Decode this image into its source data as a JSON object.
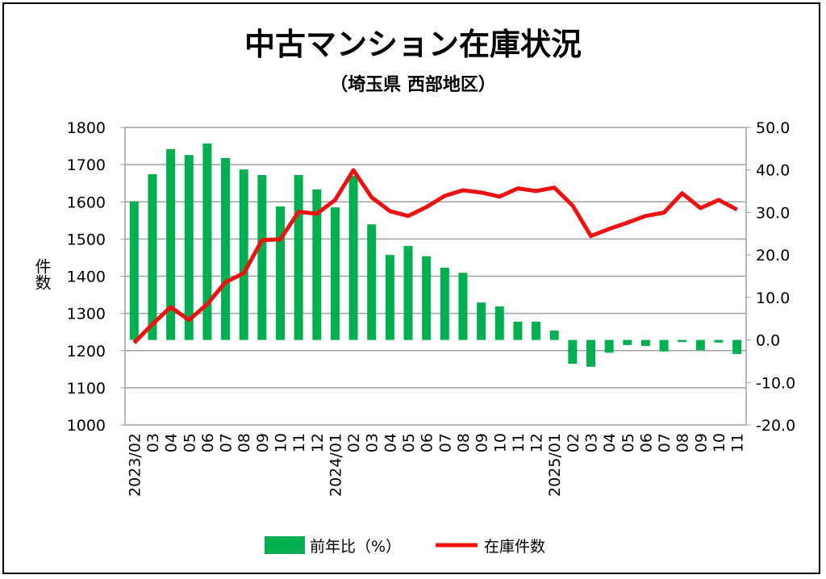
{
  "chart_data": {
    "type": "bar+line",
    "title": "中古マンション在庫状況",
    "subtitle": "（埼玉県 西部地区）",
    "ylabel": "件数",
    "categories": [
      "2023/02",
      "03",
      "04",
      "05",
      "06",
      "07",
      "08",
      "09",
      "10",
      "11",
      "12",
      "2024/01",
      "02",
      "03",
      "04",
      "05",
      "06",
      "07",
      "08",
      "09",
      "10",
      "11",
      "12",
      "2025/01",
      "02",
      "03",
      "04",
      "05",
      "06",
      "07",
      "08",
      "09",
      "10",
      "11"
    ],
    "left_axis": {
      "min": 1000,
      "max": 1800,
      "ticks": [
        "1000",
        "1100",
        "1200",
        "1300",
        "1400",
        "1500",
        "1600",
        "1700",
        "1800"
      ]
    },
    "right_axis": {
      "min": -20,
      "max": 50,
      "ticks": [
        "-20.0",
        "-10.0",
        "0.0",
        "10.0",
        "20.0",
        "30.0",
        "40.0",
        "50.0"
      ],
      "negative_color": "#e02020"
    },
    "grid": true,
    "legend_position": "bottom",
    "series": [
      {
        "name": "前年比（%）",
        "type": "bar",
        "axis": "right",
        "color": "#00b050",
        "values": [
          32.6,
          39.0,
          44.9,
          43.5,
          46.2,
          42.8,
          40.1,
          38.8,
          31.4,
          38.8,
          35.4,
          31.2,
          38.6,
          27.2,
          20.0,
          22.1,
          19.7,
          17.0,
          15.8,
          8.8,
          7.9,
          4.3,
          4.3,
          2.2,
          -5.6,
          -6.3,
          -3.0,
          -1.2,
          -1.4,
          -2.7,
          -0.5,
          -2.4,
          -0.6,
          -3.3
        ]
      },
      {
        "name": "在庫件数",
        "type": "line",
        "axis": "left",
        "color": "#ee1111",
        "values": [
          1221,
          1271,
          1317,
          1282,
          1325,
          1384,
          1408,
          1497,
          1499,
          1573,
          1568,
          1605,
          1685,
          1612,
          1575,
          1562,
          1586,
          1616,
          1631,
          1625,
          1614,
          1636,
          1629,
          1638,
          1590,
          1508,
          1527,
          1544,
          1562,
          1571,
          1623,
          1583,
          1605,
          1579
        ]
      }
    ]
  }
}
